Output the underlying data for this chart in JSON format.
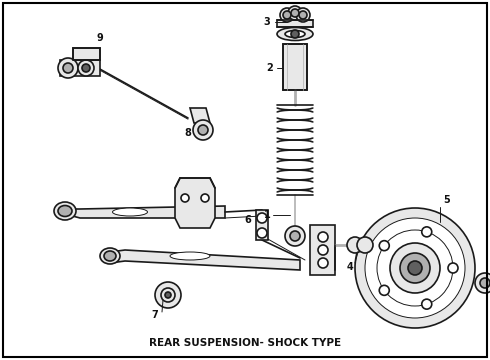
{
  "title": "REAR SUSPENSION- SHOCK TYPE",
  "background_color": "#ffffff",
  "border_color": "#000000",
  "title_fontsize": 7.5,
  "fig_width": 4.9,
  "fig_height": 3.6,
  "dpi": 100,
  "lc": "#1a1a1a",
  "fc_light": "#e8e8e8",
  "fc_med": "#b0b0b0",
  "fc_dark": "#606060",
  "lw_main": 1.2,
  "lw_thin": 0.7,
  "lw_thick": 2.0
}
